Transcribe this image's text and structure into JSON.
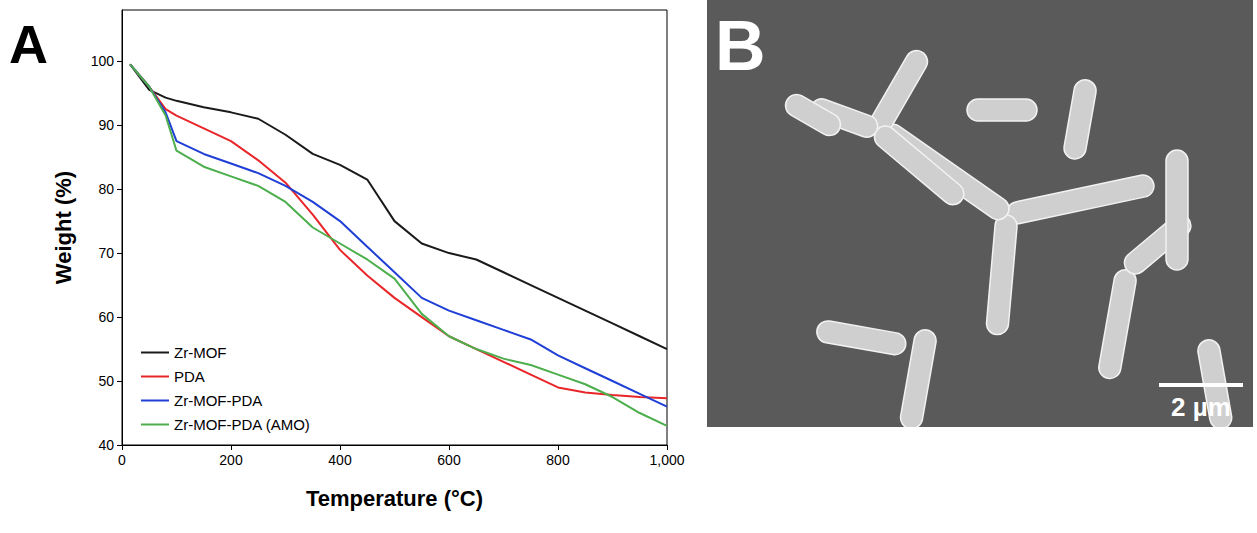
{
  "chart_data": {
    "type": "line",
    "panel_label": "A",
    "x_label": "Temperature (°C)",
    "y_label": "Weight (%)",
    "x": [
      15,
      50,
      80,
      100,
      150,
      200,
      250,
      300,
      350,
      400,
      450,
      500,
      550,
      600,
      650,
      700,
      750,
      800,
      850,
      900,
      950,
      1000
    ],
    "series": [
      {
        "name": "Zr-MOF",
        "color": "#1a1a1a",
        "values": [
          99.5,
          95.5,
          94.3,
          93.8,
          92.8,
          92,
          91,
          88.5,
          85.5,
          83.8,
          81.5,
          75,
          71.5,
          70,
          69,
          67,
          65,
          63,
          61,
          59,
          57,
          55
        ]
      },
      {
        "name": "PDA",
        "color": "#e8262a",
        "values": [
          99.5,
          96,
          92.5,
          91.5,
          89.5,
          87.5,
          84.5,
          81,
          76,
          70.5,
          66.5,
          63,
          60,
          57,
          55,
          53,
          51,
          49,
          48.2,
          47.8,
          47.5,
          47.3
        ]
      },
      {
        "name": "Zr-MOF-PDA",
        "color": "#1f3fd6",
        "values": [
          99.5,
          96,
          92,
          87.5,
          85.5,
          84,
          82.5,
          80.5,
          78,
          75,
          71,
          67,
          63,
          61,
          59.5,
          58,
          56.5,
          54,
          52,
          50,
          48,
          46
        ]
      },
      {
        "name": "Zr-MOF-PDA (AMO)",
        "color": "#4cae4c",
        "values": [
          99.5,
          96,
          91.5,
          86,
          83.5,
          82,
          80.5,
          78,
          74,
          71.5,
          69,
          66,
          60.5,
          57,
          55,
          53.5,
          52.5,
          51,
          49.5,
          47.5,
          45,
          43
        ]
      }
    ],
    "xlim": [
      0,
      1000
    ],
    "xticks": [
      0,
      200,
      400,
      600,
      800,
      1000
    ],
    "ylim": [
      40,
      108
    ],
    "yticks": [
      40,
      50,
      60,
      70,
      80,
      90,
      100
    ],
    "legend": "lower left",
    "grid": false
  },
  "image_panel": {
    "panel_label": "B",
    "scale_bar": "2 µm"
  }
}
